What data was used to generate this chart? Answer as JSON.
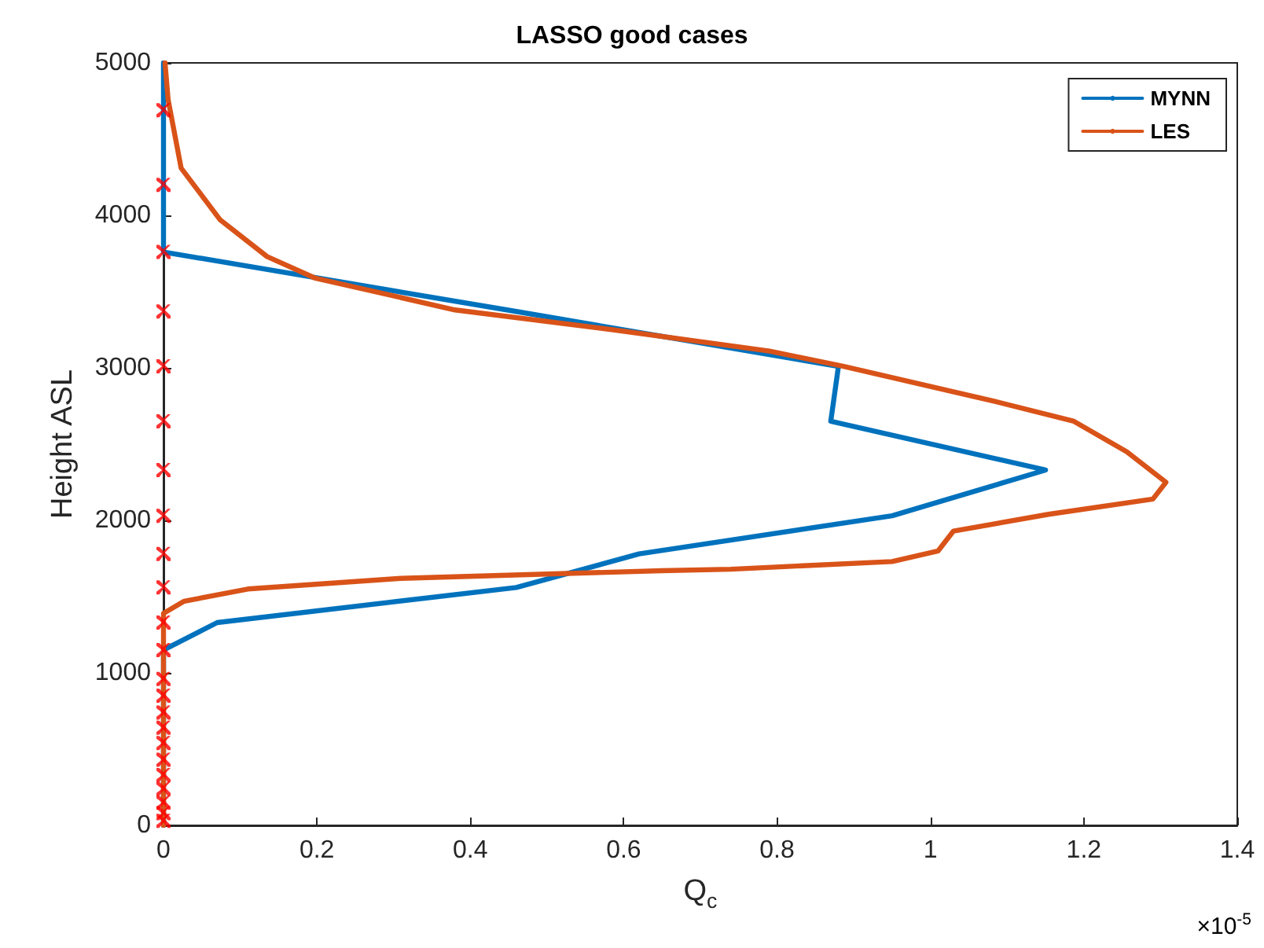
{
  "chart_data": {
    "type": "line",
    "title": "LASSO good cases",
    "xlabel": "Q$_{c}$",
    "ylabel": "Height ASL",
    "annotations": [
      "×10$^{-5}$"
    ],
    "xlim": [
      0,
      1.4
    ],
    "xticks": [
      0,
      0.2,
      0.4,
      0.6,
      0.8,
      1,
      1.2,
      1.4
    ],
    "ylim": [
      0,
      5000
    ],
    "yticks": [
      0,
      1000,
      2000,
      3000,
      4000,
      5000
    ],
    "grid": false,
    "legend": "top right",
    "line_style": "solid",
    "series": [
      {
        "name": "MYNN",
        "color": "#0072bd",
        "marker": "none",
        "x": [
          0,
          0,
          0,
          0,
          0.46,
          0.88,
          0.87,
          1.15,
          0.95,
          0.62,
          0.46,
          0.07,
          0,
          0
        ],
        "values": [
          5000,
          4690,
          4200,
          3760,
          3370,
          3010,
          2650,
          2330,
          2030,
          1780,
          1560,
          1330,
          1150,
          0
        ]
      },
      {
        "name": "LES",
        "color": "#d95319",
        "marker": "none",
        "x": [
          0.002,
          0.006,
          0.023,
          0.074,
          0.135,
          0.197,
          0.38,
          0.586,
          0.79,
          0.887,
          1.084,
          1.187,
          1.256,
          1.307,
          1.29,
          1.154,
          1.03,
          1.01,
          0.95,
          0.74,
          0.65,
          0.31,
          0.11,
          0.027,
          0,
          0,
          0
        ],
        "values": [
          5000,
          4760,
          4310,
          3970,
          3730,
          3590,
          3380,
          3250,
          3110,
          3010,
          2780,
          2650,
          2450,
          2250,
          2140,
          2040,
          1930,
          1800,
          1730,
          1680,
          1670,
          1620,
          1550,
          1470,
          1390,
          700,
          0
        ]
      },
      {
        "type": "scatter",
        "color": "#ff0000",
        "marker": "cross",
        "x": [
          0,
          0,
          0,
          0,
          0,
          0,
          0,
          0,
          0,
          0,
          0,
          0,
          0,
          0,
          0,
          0,
          0,
          0,
          0,
          0,
          0,
          0,
          0
        ],
        "values": [
          4690,
          4200,
          3760,
          3370,
          3010,
          2650,
          2330,
          2030,
          1780,
          1560,
          1330,
          1150,
          960,
          850,
          740,
          640,
          540,
          430,
          330,
          240,
          150,
          80,
          30
        ]
      }
    ]
  }
}
